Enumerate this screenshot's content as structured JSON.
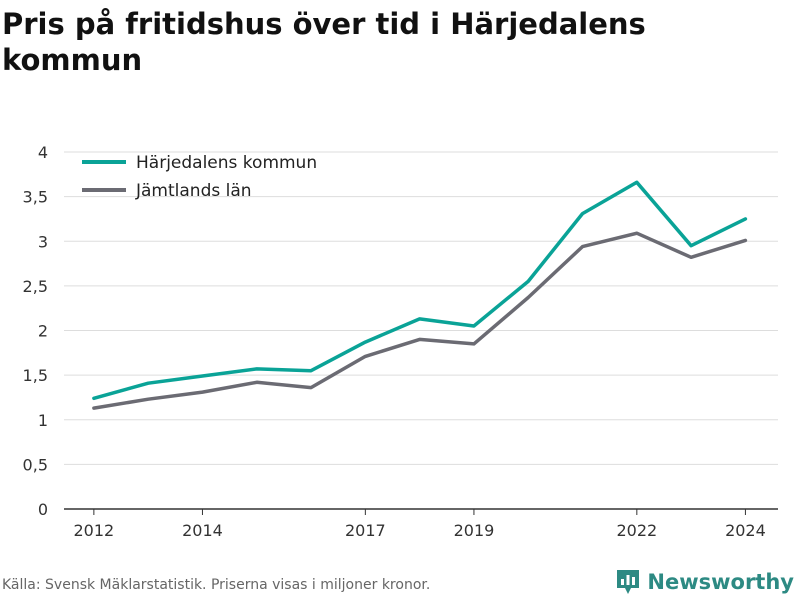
{
  "header": {
    "title": "Pris på fritidshus över tid i Härjedalens kommun"
  },
  "footer": {
    "source": "Källa: Svensk Mäklarstatistik. Priserna visas i miljoner kronor."
  },
  "brand": {
    "name": "Newsworthy"
  },
  "colors": {
    "series1": "#0aa397",
    "series2": "#6b6b73",
    "grid": "#dddddd",
    "axis": "#333333",
    "brand": "#2d8a83"
  },
  "chart_data": {
    "type": "line",
    "title": "Pris på fritidshus över tid i Härjedalens kommun",
    "xlabel": "",
    "ylabel": "",
    "x": [
      2012,
      2013,
      2014,
      2015,
      2016,
      2017,
      2018,
      2019,
      2020,
      2021,
      2022,
      2023,
      2024
    ],
    "xticks": [
      2012,
      2014,
      2017,
      2019,
      2022,
      2024
    ],
    "yticks": [
      "0",
      "0,5",
      "1",
      "1,5",
      "2",
      "2,5",
      "3",
      "3,5",
      "4"
    ],
    "ylim": [
      0,
      4
    ],
    "grid": true,
    "legend_position": "top-left",
    "series": [
      {
        "name": "Härjedalens kommun",
        "values": [
          1.24,
          1.41,
          1.49,
          1.57,
          1.55,
          1.87,
          2.13,
          2.05,
          2.55,
          3.31,
          3.66,
          2.95,
          3.25
        ]
      },
      {
        "name": "Jämtlands län",
        "values": [
          1.13,
          1.23,
          1.31,
          1.42,
          1.36,
          1.71,
          1.9,
          1.85,
          2.37,
          2.94,
          3.09,
          2.82,
          3.01
        ]
      }
    ]
  }
}
